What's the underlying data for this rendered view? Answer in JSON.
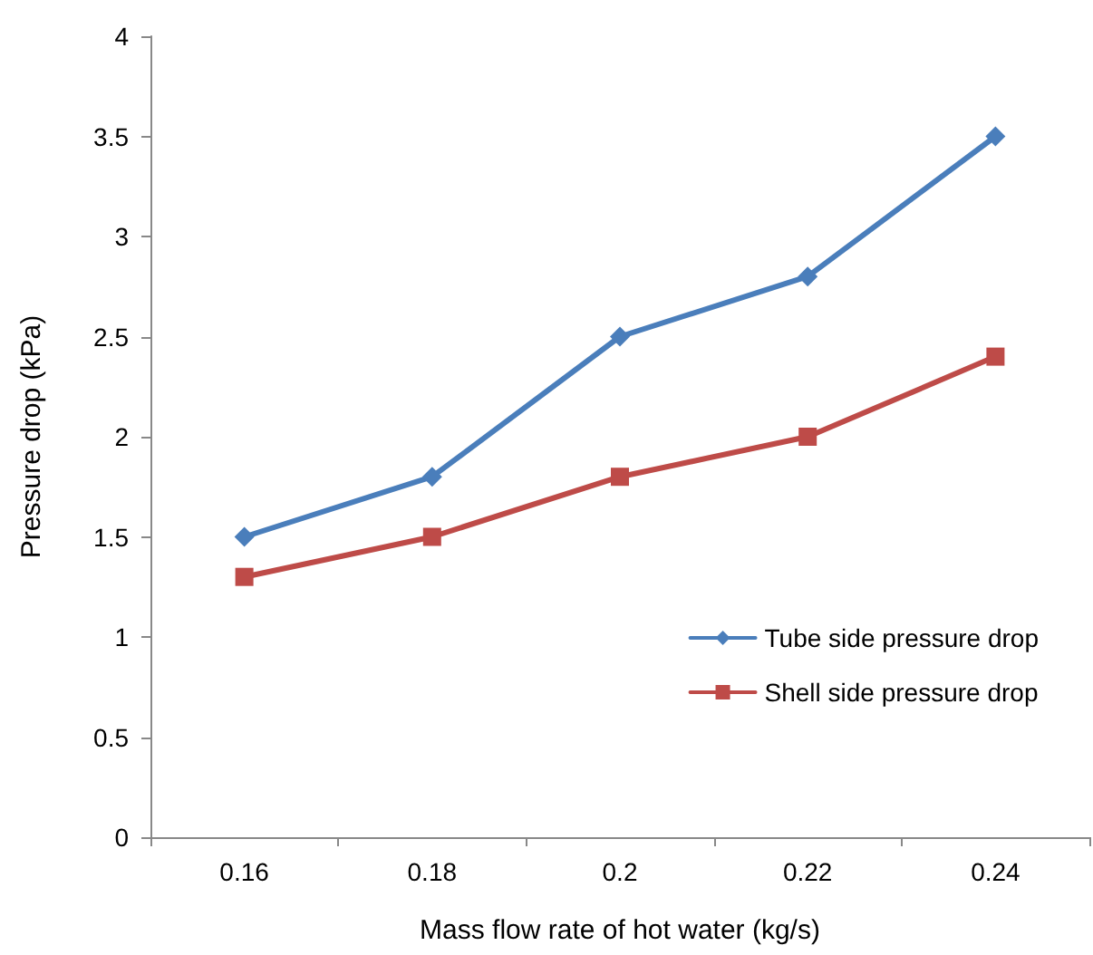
{
  "chart_data": {
    "type": "line",
    "xlabel": "Mass flow rate of hot water (kg/s)",
    "ylabel": "Pressure drop (kPa)",
    "categories": [
      "0.16",
      "0.18",
      "0.2",
      "0.22",
      "0.24"
    ],
    "series": [
      {
        "name": "Tube side pressure drop",
        "color": "#4a7ebb",
        "marker": "diamond",
        "values": [
          1.5,
          1.8,
          2.5,
          2.8,
          3.5
        ]
      },
      {
        "name": "Shell side pressure drop",
        "color": "#be4b48",
        "marker": "square",
        "values": [
          1.3,
          1.5,
          1.8,
          2.0,
          2.4
        ]
      }
    ],
    "ylim": [
      0,
      4
    ],
    "yticks": [
      0,
      0.5,
      1,
      1.5,
      2,
      2.5,
      3,
      3.5,
      4
    ],
    "grid": false,
    "legend": "right",
    "line_style": "solid"
  }
}
